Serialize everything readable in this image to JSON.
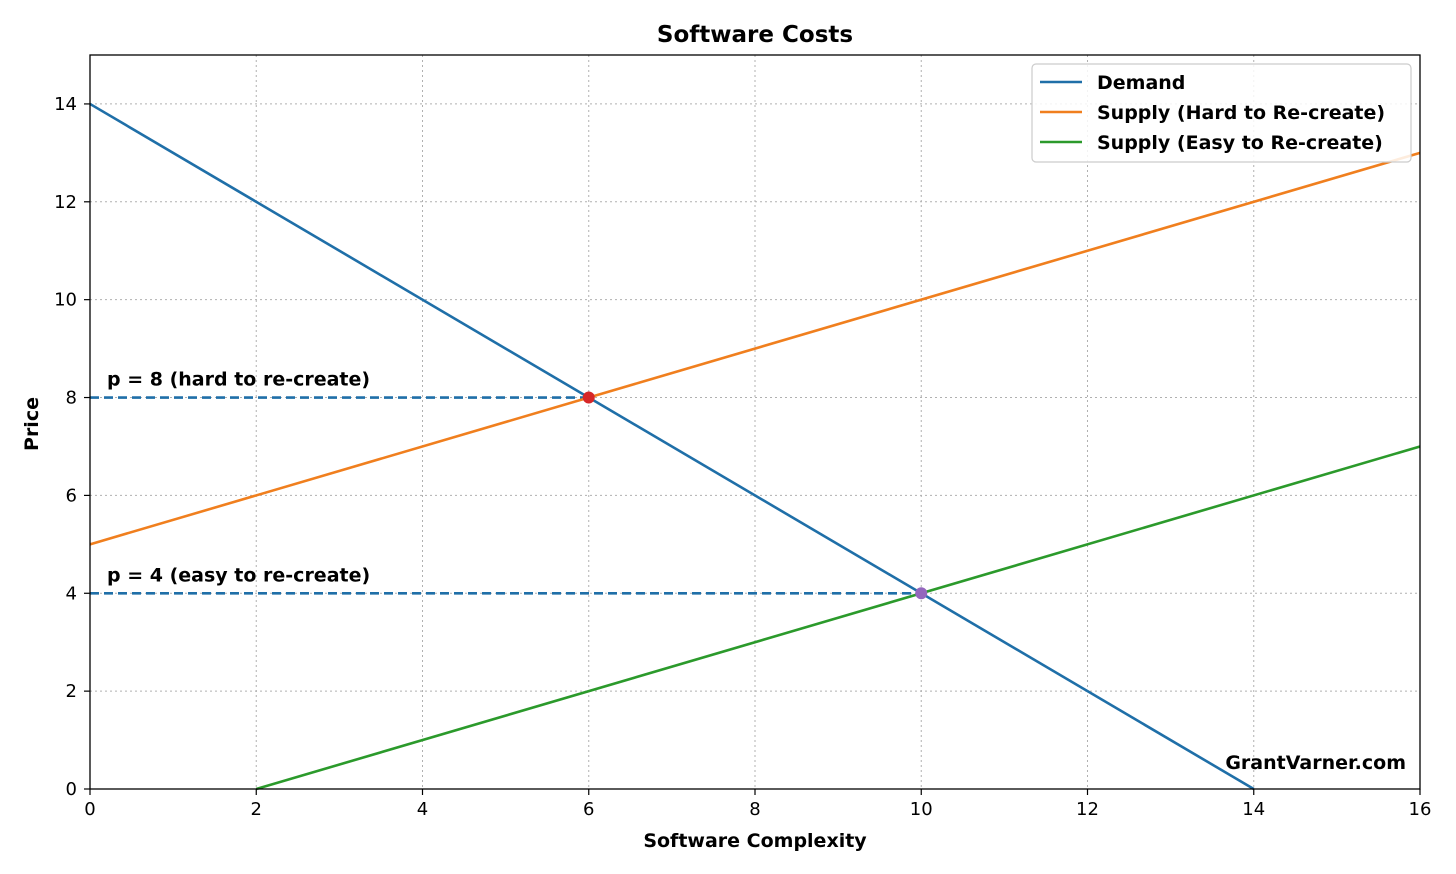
{
  "chart_data": {
    "type": "line",
    "title": "Software Costs",
    "xlabel": "Software Complexity",
    "ylabel": "Price",
    "xlim": [
      0,
      16
    ],
    "ylim": [
      0,
      15
    ],
    "xticks": [
      0,
      2,
      4,
      6,
      8,
      10,
      12,
      14,
      16
    ],
    "yticks": [
      0,
      2,
      4,
      6,
      8,
      10,
      12,
      14
    ],
    "grid": true,
    "legend_position": "top-right",
    "series": [
      {
        "name": "Demand",
        "color": "#1f6fa8",
        "x": [
          0,
          14
        ],
        "y": [
          14,
          0
        ]
      },
      {
        "name": "Supply (Hard to Re-create)",
        "color": "#f07f1e",
        "x": [
          0,
          16
        ],
        "y": [
          5,
          13
        ]
      },
      {
        "name": "Supply (Easy to Re-create)",
        "color": "#2b9a2b",
        "x": [
          2,
          16
        ],
        "y": [
          0,
          7
        ]
      }
    ],
    "equilibria": [
      {
        "x": 6,
        "y": 8,
        "color": "#d62728",
        "label": "p = 8 (hard to re-create)"
      },
      {
        "x": 10,
        "y": 4,
        "color": "#9467bd",
        "label": "p = 4 (easy to re-create)"
      }
    ],
    "guide_line_color": "#1f6fa8",
    "watermark": "GrantVarner.com"
  }
}
